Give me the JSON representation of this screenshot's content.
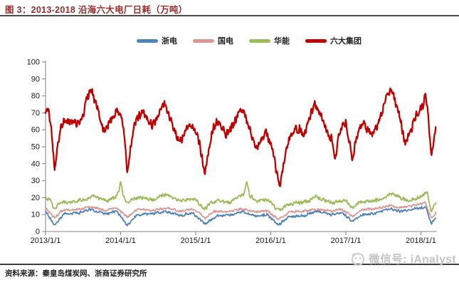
{
  "header": {
    "title": "图 3：2013-2018 沿海六大电厂日耗（万吨）",
    "title_color": "#9e2a2b",
    "rule_color": "#4d4d4d"
  },
  "footer": {
    "source": "资料来源：秦皇岛煤炭网、浙商证券研究所",
    "watermark_label": "微信号: iAnalyst",
    "watermark_color": "#c3c3c3"
  },
  "chart_data": {
    "type": "line",
    "title": "2013-2018 沿海六大电厂日耗（万吨）",
    "xlabel": "",
    "ylabel": "",
    "unit": "万吨",
    "grid": false,
    "legend_position": "top",
    "axis_color": "#808080",
    "tick_label_color": "#1a1a1a",
    "x_ticks": [
      "2013/1/1",
      "2014/1/1",
      "2015/1/1",
      "2016/1/1",
      "2017/1/1",
      "2018/1/1"
    ],
    "x_tick_years": [
      2013,
      2014,
      2015,
      2016,
      2017,
      2018
    ],
    "x_range": [
      2013.0,
      2018.2
    ],
    "y_ticks": [
      0,
      10,
      20,
      30,
      40,
      50,
      60,
      70,
      80,
      90,
      100
    ],
    "ylim": [
      0,
      100
    ],
    "series": [
      {
        "id": "zhedian",
        "name": "浙电",
        "color": "#4f81bd",
        "width": 1.7,
        "noise": 0.95,
        "points": [
          [
            2013.0,
            12
          ],
          [
            2013.12,
            4
          ],
          [
            2013.25,
            10.5
          ],
          [
            2013.45,
            11
          ],
          [
            2013.6,
            13
          ],
          [
            2013.8,
            10.5
          ],
          [
            2013.95,
            12
          ],
          [
            2014.09,
            3.5
          ],
          [
            2014.22,
            10
          ],
          [
            2014.42,
            10.5
          ],
          [
            2014.6,
            12
          ],
          [
            2014.8,
            9.5
          ],
          [
            2014.96,
            11
          ],
          [
            2015.12,
            4.5
          ],
          [
            2015.3,
            9.5
          ],
          [
            2015.5,
            10
          ],
          [
            2015.62,
            12
          ],
          [
            2015.8,
            9
          ],
          [
            2015.95,
            10
          ],
          [
            2016.1,
            4
          ],
          [
            2016.25,
            9
          ],
          [
            2016.45,
            9.5
          ],
          [
            2016.6,
            12
          ],
          [
            2016.8,
            10
          ],
          [
            2016.95,
            11
          ],
          [
            2017.09,
            6
          ],
          [
            2017.22,
            10
          ],
          [
            2017.42,
            11
          ],
          [
            2017.58,
            13.5
          ],
          [
            2017.72,
            12
          ],
          [
            2017.86,
            13
          ],
          [
            2017.98,
            14
          ],
          [
            2018.06,
            14.5
          ],
          [
            2018.14,
            5
          ],
          [
            2018.2,
            8.5
          ]
        ]
      },
      {
        "id": "guodian",
        "name": "国电",
        "color": "#d99694",
        "width": 1.7,
        "noise": 0.85,
        "points": [
          [
            2013.0,
            14
          ],
          [
            2013.12,
            8
          ],
          [
            2013.22,
            12.5
          ],
          [
            2013.42,
            13
          ],
          [
            2013.6,
            14.5
          ],
          [
            2013.8,
            12.5
          ],
          [
            2013.95,
            14
          ],
          [
            2014.09,
            8.5
          ],
          [
            2014.22,
            13
          ],
          [
            2014.42,
            12.5
          ],
          [
            2014.6,
            14
          ],
          [
            2014.8,
            12
          ],
          [
            2014.96,
            13.5
          ],
          [
            2015.05,
            11
          ],
          [
            2015.12,
            7.5
          ],
          [
            2015.25,
            12
          ],
          [
            2015.45,
            11.5
          ],
          [
            2015.62,
            13.5
          ],
          [
            2015.8,
            11.5
          ],
          [
            2015.95,
            12.5
          ],
          [
            2016.1,
            7
          ],
          [
            2016.25,
            11.5
          ],
          [
            2016.45,
            12
          ],
          [
            2016.6,
            13.5
          ],
          [
            2016.8,
            12
          ],
          [
            2016.95,
            13
          ],
          [
            2017.09,
            9
          ],
          [
            2017.22,
            13
          ],
          [
            2017.42,
            13.5
          ],
          [
            2017.58,
            15.5
          ],
          [
            2017.72,
            14
          ],
          [
            2017.86,
            15
          ],
          [
            2017.98,
            16
          ],
          [
            2018.06,
            17
          ],
          [
            2018.14,
            7.5
          ],
          [
            2018.2,
            11
          ]
        ]
      },
      {
        "id": "huaneng",
        "name": "华能",
        "color": "#9bbb59",
        "width": 1.8,
        "noise": 1.3,
        "points": [
          [
            2013.0,
            20
          ],
          [
            2013.06,
            19
          ],
          [
            2013.12,
            13.5
          ],
          [
            2013.18,
            16.5
          ],
          [
            2013.3,
            17.5
          ],
          [
            2013.42,
            18
          ],
          [
            2013.55,
            19.5
          ],
          [
            2013.62,
            21.5
          ],
          [
            2013.72,
            19.5
          ],
          [
            2013.82,
            18
          ],
          [
            2013.92,
            20
          ],
          [
            2013.98,
            24
          ],
          [
            2014.0,
            30
          ],
          [
            2014.03,
            22
          ],
          [
            2014.09,
            16.5
          ],
          [
            2014.16,
            19
          ],
          [
            2014.3,
            20
          ],
          [
            2014.42,
            18.5
          ],
          [
            2014.56,
            21.5
          ],
          [
            2014.63,
            22
          ],
          [
            2014.75,
            18.5
          ],
          [
            2014.88,
            18.5
          ],
          [
            2015.0,
            19
          ],
          [
            2015.07,
            15
          ],
          [
            2015.12,
            13
          ],
          [
            2015.2,
            17
          ],
          [
            2015.32,
            18
          ],
          [
            2015.44,
            17
          ],
          [
            2015.55,
            19.5
          ],
          [
            2015.64,
            22
          ],
          [
            2015.68,
            30
          ],
          [
            2015.72,
            21
          ],
          [
            2015.82,
            18
          ],
          [
            2015.93,
            18.5
          ],
          [
            2016.0,
            18
          ],
          [
            2016.08,
            13
          ],
          [
            2016.13,
            12.5
          ],
          [
            2016.22,
            16
          ],
          [
            2016.35,
            17
          ],
          [
            2016.48,
            17.5
          ],
          [
            2016.6,
            20.5
          ],
          [
            2016.72,
            18.5
          ],
          [
            2016.84,
            17
          ],
          [
            2016.95,
            18.5
          ],
          [
            2017.02,
            17.5
          ],
          [
            2017.09,
            14
          ],
          [
            2017.18,
            17
          ],
          [
            2017.3,
            18
          ],
          [
            2017.42,
            18.5
          ],
          [
            2017.55,
            21
          ],
          [
            2017.62,
            22.5
          ],
          [
            2017.74,
            19.5
          ],
          [
            2017.84,
            18
          ],
          [
            2017.93,
            19.5
          ],
          [
            2018.02,
            21
          ],
          [
            2018.08,
            23.5
          ],
          [
            2018.14,
            11.5
          ],
          [
            2018.2,
            17.5
          ]
        ]
      },
      {
        "id": "liudajituan",
        "name": "六大集团",
        "color": "#c00000",
        "width": 2.3,
        "noise": 3.0,
        "points": [
          [
            2013.0,
            71
          ],
          [
            2013.04,
            72
          ],
          [
            2013.08,
            58
          ],
          [
            2013.12,
            36
          ],
          [
            2013.16,
            50
          ],
          [
            2013.21,
            62
          ],
          [
            2013.27,
            66
          ],
          [
            2013.32,
            63
          ],
          [
            2013.38,
            65
          ],
          [
            2013.44,
            63
          ],
          [
            2013.5,
            69
          ],
          [
            2013.55,
            78
          ],
          [
            2013.6,
            85
          ],
          [
            2013.64,
            80
          ],
          [
            2013.69,
            73
          ],
          [
            2013.74,
            64
          ],
          [
            2013.79,
            59
          ],
          [
            2013.84,
            64
          ],
          [
            2013.89,
            68
          ],
          [
            2013.94,
            71
          ],
          [
            2014.0,
            70
          ],
          [
            2014.04,
            62
          ],
          [
            2014.09,
            35
          ],
          [
            2014.14,
            52
          ],
          [
            2014.19,
            65
          ],
          [
            2014.25,
            68
          ],
          [
            2014.31,
            71
          ],
          [
            2014.36,
            67
          ],
          [
            2014.42,
            62
          ],
          [
            2014.47,
            65
          ],
          [
            2014.52,
            71
          ],
          [
            2014.56,
            76
          ],
          [
            2014.61,
            73
          ],
          [
            2014.66,
            67
          ],
          [
            2014.71,
            61
          ],
          [
            2014.76,
            55
          ],
          [
            2014.81,
            54
          ],
          [
            2014.86,
            59
          ],
          [
            2014.91,
            62
          ],
          [
            2014.96,
            63
          ],
          [
            2015.0,
            60
          ],
          [
            2015.05,
            52
          ],
          [
            2015.12,
            34
          ],
          [
            2015.17,
            48
          ],
          [
            2015.22,
            60
          ],
          [
            2015.28,
            65
          ],
          [
            2015.34,
            62
          ],
          [
            2015.4,
            57
          ],
          [
            2015.46,
            60
          ],
          [
            2015.52,
            65
          ],
          [
            2015.58,
            70
          ],
          [
            2015.62,
            72
          ],
          [
            2015.67,
            67
          ],
          [
            2015.72,
            60
          ],
          [
            2015.77,
            53
          ],
          [
            2015.81,
            49
          ],
          [
            2015.86,
            53
          ],
          [
            2015.91,
            57
          ],
          [
            2015.95,
            58
          ],
          [
            2016.0,
            52
          ],
          [
            2016.05,
            42
          ],
          [
            2016.09,
            32
          ],
          [
            2016.13,
            28
          ],
          [
            2016.18,
            42
          ],
          [
            2016.23,
            52
          ],
          [
            2016.28,
            58
          ],
          [
            2016.33,
            61
          ],
          [
            2016.38,
            60
          ],
          [
            2016.43,
            58
          ],
          [
            2016.48,
            62
          ],
          [
            2016.53,
            68
          ],
          [
            2016.58,
            76
          ],
          [
            2016.62,
            72
          ],
          [
            2016.67,
            68
          ],
          [
            2016.72,
            61
          ],
          [
            2016.77,
            57
          ],
          [
            2016.82,
            54
          ],
          [
            2016.86,
            41
          ],
          [
            2016.9,
            55
          ],
          [
            2016.95,
            62
          ],
          [
            2017.0,
            65
          ],
          [
            2017.04,
            54
          ],
          [
            2017.09,
            43
          ],
          [
            2017.14,
            55
          ],
          [
            2017.19,
            62
          ],
          [
            2017.24,
            64
          ],
          [
            2017.29,
            60
          ],
          [
            2017.34,
            58
          ],
          [
            2017.39,
            61
          ],
          [
            2017.44,
            65
          ],
          [
            2017.5,
            72
          ],
          [
            2017.55,
            81
          ],
          [
            2017.6,
            84
          ],
          [
            2017.64,
            79
          ],
          [
            2017.69,
            73
          ],
          [
            2017.74,
            63
          ],
          [
            2017.79,
            52
          ],
          [
            2017.84,
            57
          ],
          [
            2017.89,
            63
          ],
          [
            2017.93,
            68
          ],
          [
            2017.97,
            71
          ],
          [
            2018.02,
            74
          ],
          [
            2018.06,
            80
          ],
          [
            2018.09,
            72
          ],
          [
            2018.14,
            42
          ],
          [
            2018.17,
            55
          ],
          [
            2018.2,
            64
          ]
        ]
      }
    ]
  }
}
